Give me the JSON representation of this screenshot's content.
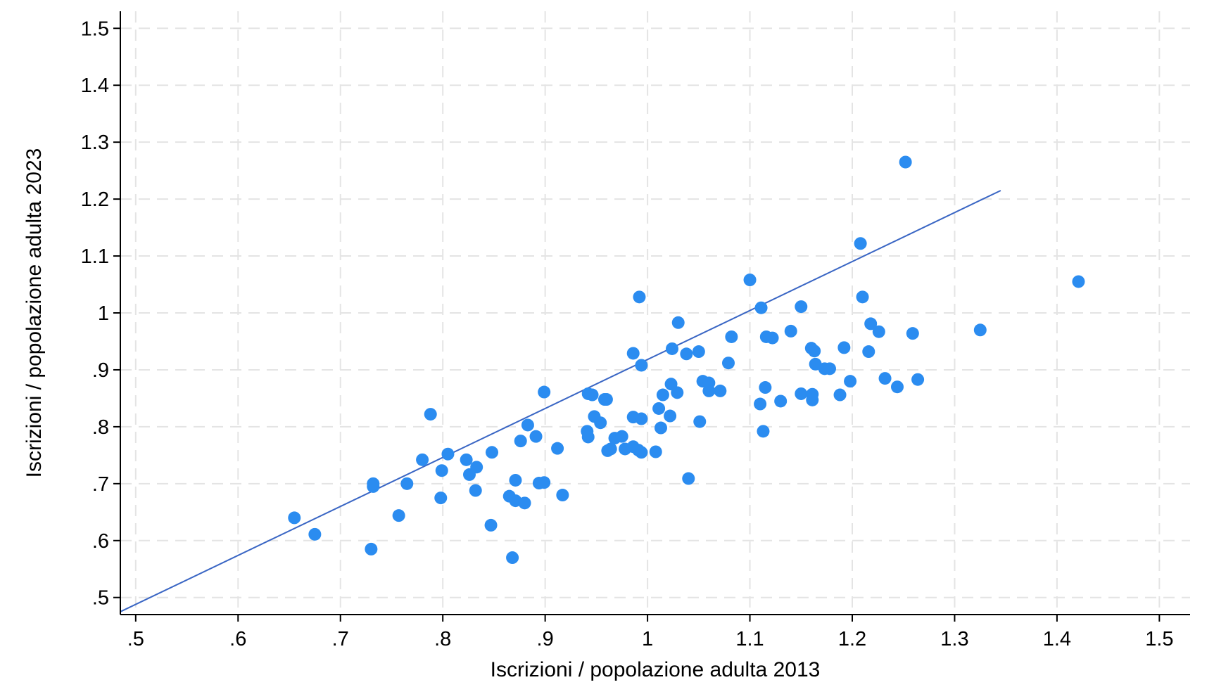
{
  "chart_data": {
    "type": "scatter",
    "title": "",
    "xlabel": "Iscrizioni / popolazione adulta 2013",
    "ylabel": "Iscrizioni / popolazione adulta 2023",
    "xlim": [
      0.485,
      1.53
    ],
    "ylim": [
      0.47,
      1.53
    ],
    "x_ticks": [
      0.5,
      0.6,
      0.7,
      0.8,
      0.9,
      1.0,
      1.1,
      1.2,
      1.3,
      1.4,
      1.5
    ],
    "x_tick_labels": [
      ".5",
      ".6",
      ".7",
      ".8",
      ".9",
      "1",
      "1.1",
      "1.2",
      "1.3",
      "1.4",
      "1.5"
    ],
    "y_ticks": [
      0.5,
      0.6,
      0.7,
      0.8,
      0.9,
      1.0,
      1.1,
      1.2,
      1.3,
      1.4,
      1.5
    ],
    "y_tick_labels": [
      ".5",
      ".6",
      ".7",
      ".8",
      ".9",
      "1",
      "1.1",
      "1.2",
      "1.3",
      "1.4",
      "1.5"
    ],
    "grid": true,
    "marker_color": "#2b8cf0",
    "line_color": "#3a66c4",
    "reference_line": {
      "x": [
        0.485,
        1.345
      ],
      "y": [
        0.475,
        1.215
      ]
    },
    "points": [
      [
        0.655,
        0.64
      ],
      [
        0.675,
        0.611
      ],
      [
        0.73,
        0.585
      ],
      [
        0.732,
        0.695
      ],
      [
        0.732,
        0.7
      ],
      [
        0.757,
        0.644
      ],
      [
        0.765,
        0.7
      ],
      [
        0.78,
        0.742
      ],
      [
        0.788,
        0.822
      ],
      [
        0.798,
        0.675
      ],
      [
        0.799,
        0.723
      ],
      [
        0.805,
        0.752
      ],
      [
        0.823,
        0.742
      ],
      [
        0.826,
        0.716
      ],
      [
        0.832,
        0.688
      ],
      [
        0.833,
        0.729
      ],
      [
        0.847,
        0.627
      ],
      [
        0.848,
        0.755
      ],
      [
        0.865,
        0.678
      ],
      [
        0.868,
        0.57
      ],
      [
        0.871,
        0.706
      ],
      [
        0.871,
        0.67
      ],
      [
        0.876,
        0.775
      ],
      [
        0.88,
        0.666
      ],
      [
        0.883,
        0.803
      ],
      [
        0.891,
        0.783
      ],
      [
        0.894,
        0.701
      ],
      [
        0.899,
        0.702
      ],
      [
        0.899,
        0.861
      ],
      [
        0.912,
        0.762
      ],
      [
        0.917,
        0.68
      ],
      [
        0.941,
        0.792
      ],
      [
        0.942,
        0.782
      ],
      [
        0.942,
        0.858
      ],
      [
        0.946,
        0.856
      ],
      [
        0.948,
        0.818
      ],
      [
        0.954,
        0.807
      ],
      [
        0.958,
        0.848
      ],
      [
        0.96,
        0.848
      ],
      [
        0.961,
        0.758
      ],
      [
        0.964,
        0.761
      ],
      [
        0.968,
        0.78
      ],
      [
        0.975,
        0.783
      ],
      [
        0.978,
        0.761
      ],
      [
        0.986,
        0.765
      ],
      [
        0.986,
        0.817
      ],
      [
        0.986,
        0.929
      ],
      [
        0.991,
        0.759
      ],
      [
        0.992,
        1.028
      ],
      [
        0.994,
        0.908
      ],
      [
        0.994,
        0.755
      ],
      [
        0.994,
        0.814
      ],
      [
        1.008,
        0.756
      ],
      [
        1.011,
        0.832
      ],
      [
        1.013,
        0.798
      ],
      [
        1.015,
        0.856
      ],
      [
        1.022,
        0.819
      ],
      [
        1.023,
        0.875
      ],
      [
        1.024,
        0.937
      ],
      [
        1.029,
        0.86
      ],
      [
        1.03,
        0.983
      ],
      [
        1.038,
        0.928
      ],
      [
        1.04,
        0.709
      ],
      [
        1.05,
        0.932
      ],
      [
        1.051,
        0.809
      ],
      [
        1.054,
        0.88
      ],
      [
        1.06,
        0.877
      ],
      [
        1.06,
        0.863
      ],
      [
        1.071,
        0.863
      ],
      [
        1.079,
        0.912
      ],
      [
        1.082,
        0.958
      ],
      [
        1.1,
        1.058
      ],
      [
        1.11,
        0.84
      ],
      [
        1.111,
        1.009
      ],
      [
        1.113,
        0.792
      ],
      [
        1.115,
        0.869
      ],
      [
        1.116,
        0.958
      ],
      [
        1.122,
        0.956
      ],
      [
        1.13,
        0.845
      ],
      [
        1.14,
        0.968
      ],
      [
        1.15,
        1.011
      ],
      [
        1.15,
        0.858
      ],
      [
        1.16,
        0.938
      ],
      [
        1.161,
        0.857
      ],
      [
        1.161,
        0.847
      ],
      [
        1.163,
        0.933
      ],
      [
        1.164,
        0.91
      ],
      [
        1.173,
        0.902
      ],
      [
        1.178,
        0.902
      ],
      [
        1.188,
        0.856
      ],
      [
        1.192,
        0.939
      ],
      [
        1.198,
        0.88
      ],
      [
        1.208,
        1.122
      ],
      [
        1.21,
        1.028
      ],
      [
        1.216,
        0.932
      ],
      [
        1.218,
        0.981
      ],
      [
        1.226,
        0.967
      ],
      [
        1.232,
        0.885
      ],
      [
        1.244,
        0.87
      ],
      [
        1.252,
        1.265
      ],
      [
        1.259,
        0.964
      ],
      [
        1.264,
        0.883
      ],
      [
        1.325,
        0.97
      ],
      [
        1.421,
        1.055
      ]
    ]
  }
}
